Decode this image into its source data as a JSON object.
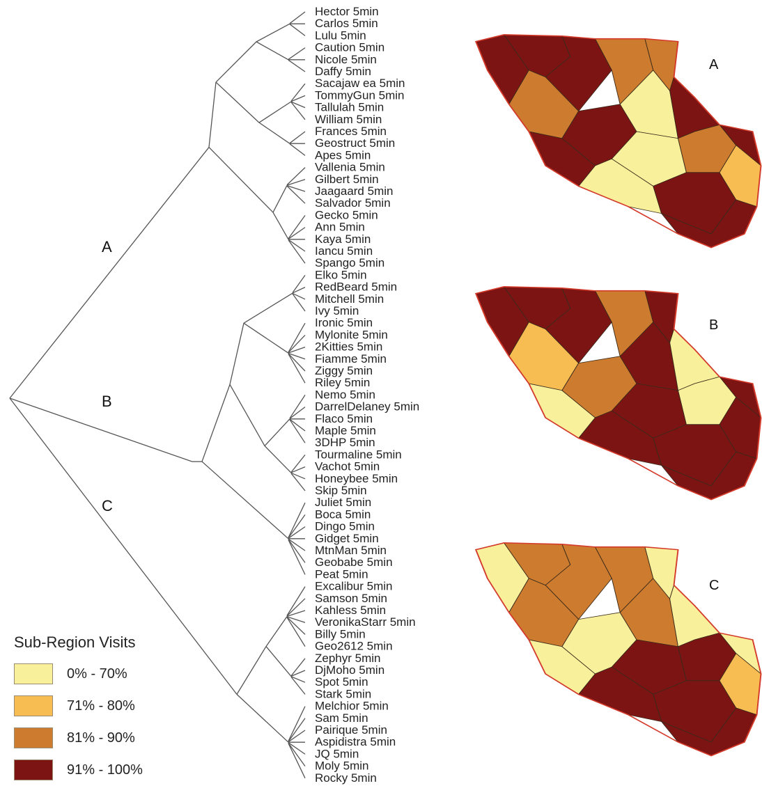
{
  "clusters": [
    {
      "label": "A",
      "map_label": "A"
    },
    {
      "label": "B",
      "map_label": "B"
    },
    {
      "label": "C",
      "map_label": "C"
    }
  ],
  "leaves": [
    "Hector 5min",
    "Carlos 5min",
    "Lulu 5min",
    "Caution 5min",
    "Nicole 5min",
    "Daffy 5min",
    "Sacajaw ea 5min",
    "TommyGun 5min",
    "Tallulah 5min",
    "William 5min",
    "Frances 5min",
    "Geostruct 5min",
    "Apes 5min",
    "Vallenia 5min",
    "Gilbert 5min",
    "Jaagaard 5min",
    "Salvador 5min",
    "Gecko 5min",
    "Ann 5min",
    "Kaya 5min",
    "Iancu 5min",
    "Spango 5min",
    "Elko 5min",
    "RedBeard 5min",
    "Mitchell 5min",
    "Ivy 5min",
    "Ironic 5min",
    "Mylonite 5min",
    "2Kitties 5min",
    "Fiamme 5min",
    "Ziggy 5min",
    "Riley 5min",
    "Nemo 5min",
    "DarrelDelaney 5min",
    "Flaco 5min",
    "Maple 5min",
    "3DHP 5min",
    "Tourmaline 5min",
    "Vachot 5min",
    "Honeybee 5min",
    "Skip 5min",
    "Juliet 5min",
    "Boca 5min",
    "Dingo 5min",
    "Gidget 5min",
    "MtnMan 5min",
    "Geobabe 5min",
    "Peat 5min",
    "Excalibur 5min",
    "Samson 5min",
    "Kahless 5min",
    "VeronikaStarr 5min",
    "Billy 5min",
    "Geo2612 5min",
    "Zephyr 5min",
    "DjMoho 5min",
    "Spot 5min",
    "Stark 5min",
    "Melchior 5min",
    "Sam 5min",
    "Pairique 5min",
    "Aspidistra 5min",
    "JQ 5min",
    "Moly 5min",
    "Rocky 5min"
  ],
  "legend": {
    "title": "Sub-Region Visits",
    "items": [
      {
        "label": "0% - 70%",
        "color": "#f8f09a"
      },
      {
        "label": "71% - 80%",
        "color": "#f7bc52"
      },
      {
        "label": "81% - 90%",
        "color": "#cd7b2e"
      },
      {
        "label": "91% - 100%",
        "color": "#7d1414"
      }
    ]
  },
  "maps": {
    "A": [
      "dark",
      "dark",
      "dark",
      "med",
      "med",
      "dark",
      "dark",
      "light",
      "light",
      "light",
      "med",
      "dark",
      "med",
      "dark",
      "dark",
      "gold",
      "dark"
    ],
    "B": [
      "dark",
      "dark",
      "dark",
      "med",
      "gold",
      "light",
      "med",
      "dark",
      "dark",
      "dark",
      "dark",
      "light",
      "light",
      "dark",
      "dark",
      "dark",
      "dark"
    ],
    "C": [
      "light",
      "med",
      "med",
      "med",
      "med",
      "light",
      "light",
      "med",
      "dark",
      "dark",
      "light",
      "light",
      "dark",
      "light",
      "dark",
      "gold",
      "dark"
    ]
  },
  "colors": {
    "light": "#f8f09a",
    "gold": "#f7bc52",
    "med": "#cd7b2e",
    "dark": "#7d1414",
    "outline": "#d43a2a"
  }
}
